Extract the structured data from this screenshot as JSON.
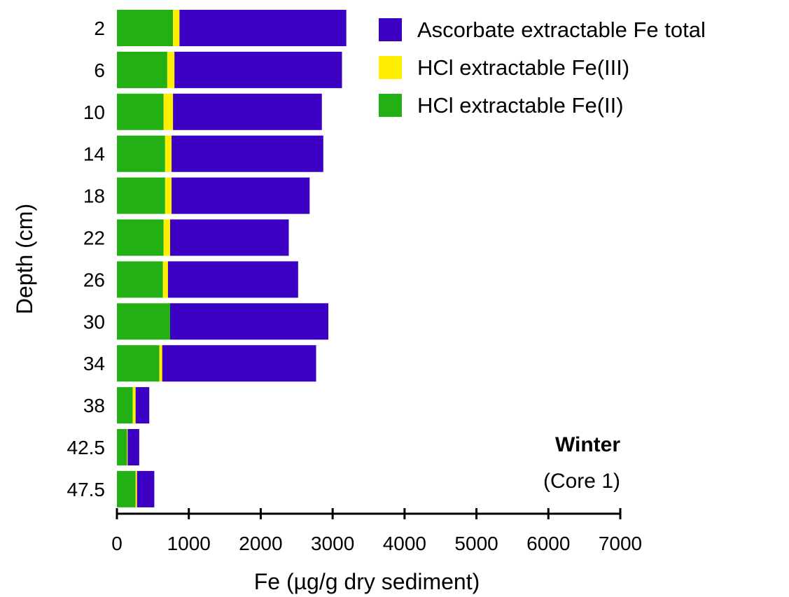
{
  "chart_data": {
    "type": "bar",
    "orientation": "horizontal",
    "stacked": true,
    "xlabel": "Fe (µg/g dry sediment)",
    "ylabel": "Depth (cm)",
    "xlim": [
      0,
      7000
    ],
    "x_ticks": [
      0,
      1000,
      2000,
      3000,
      4000,
      5000,
      6000,
      7000
    ],
    "grid": false,
    "legend_position": "top-right",
    "categories": [
      "2",
      "6",
      "10",
      "14",
      "18",
      "22",
      "26",
      "30",
      "34",
      "38",
      "42.5",
      "47.5"
    ],
    "series": [
      {
        "name": "HCl extractable Fe(II)",
        "color": "#22b014",
        "values": [
          780,
          700,
          650,
          670,
          670,
          650,
          640,
          740,
          590,
          220,
          140,
          260
        ]
      },
      {
        "name": "HCl extractable Fe(III)",
        "color": "#ffee00",
        "values": [
          90,
          100,
          130,
          90,
          90,
          90,
          70,
          0,
          40,
          40,
          10,
          20
        ]
      },
      {
        "name": "Ascorbate extractable Fe total",
        "color": "#3b00c2",
        "values": [
          2320,
          2330,
          2070,
          2110,
          1920,
          1650,
          1810,
          2200,
          2140,
          190,
          160,
          240
        ]
      }
    ],
    "legend_order": [
      "Ascorbate extractable Fe total",
      "HCl extractable Fe(III)",
      "HCl extractable Fe(II)"
    ],
    "annotation": {
      "title": "Winter",
      "subtitle": "(Core 1)"
    }
  }
}
